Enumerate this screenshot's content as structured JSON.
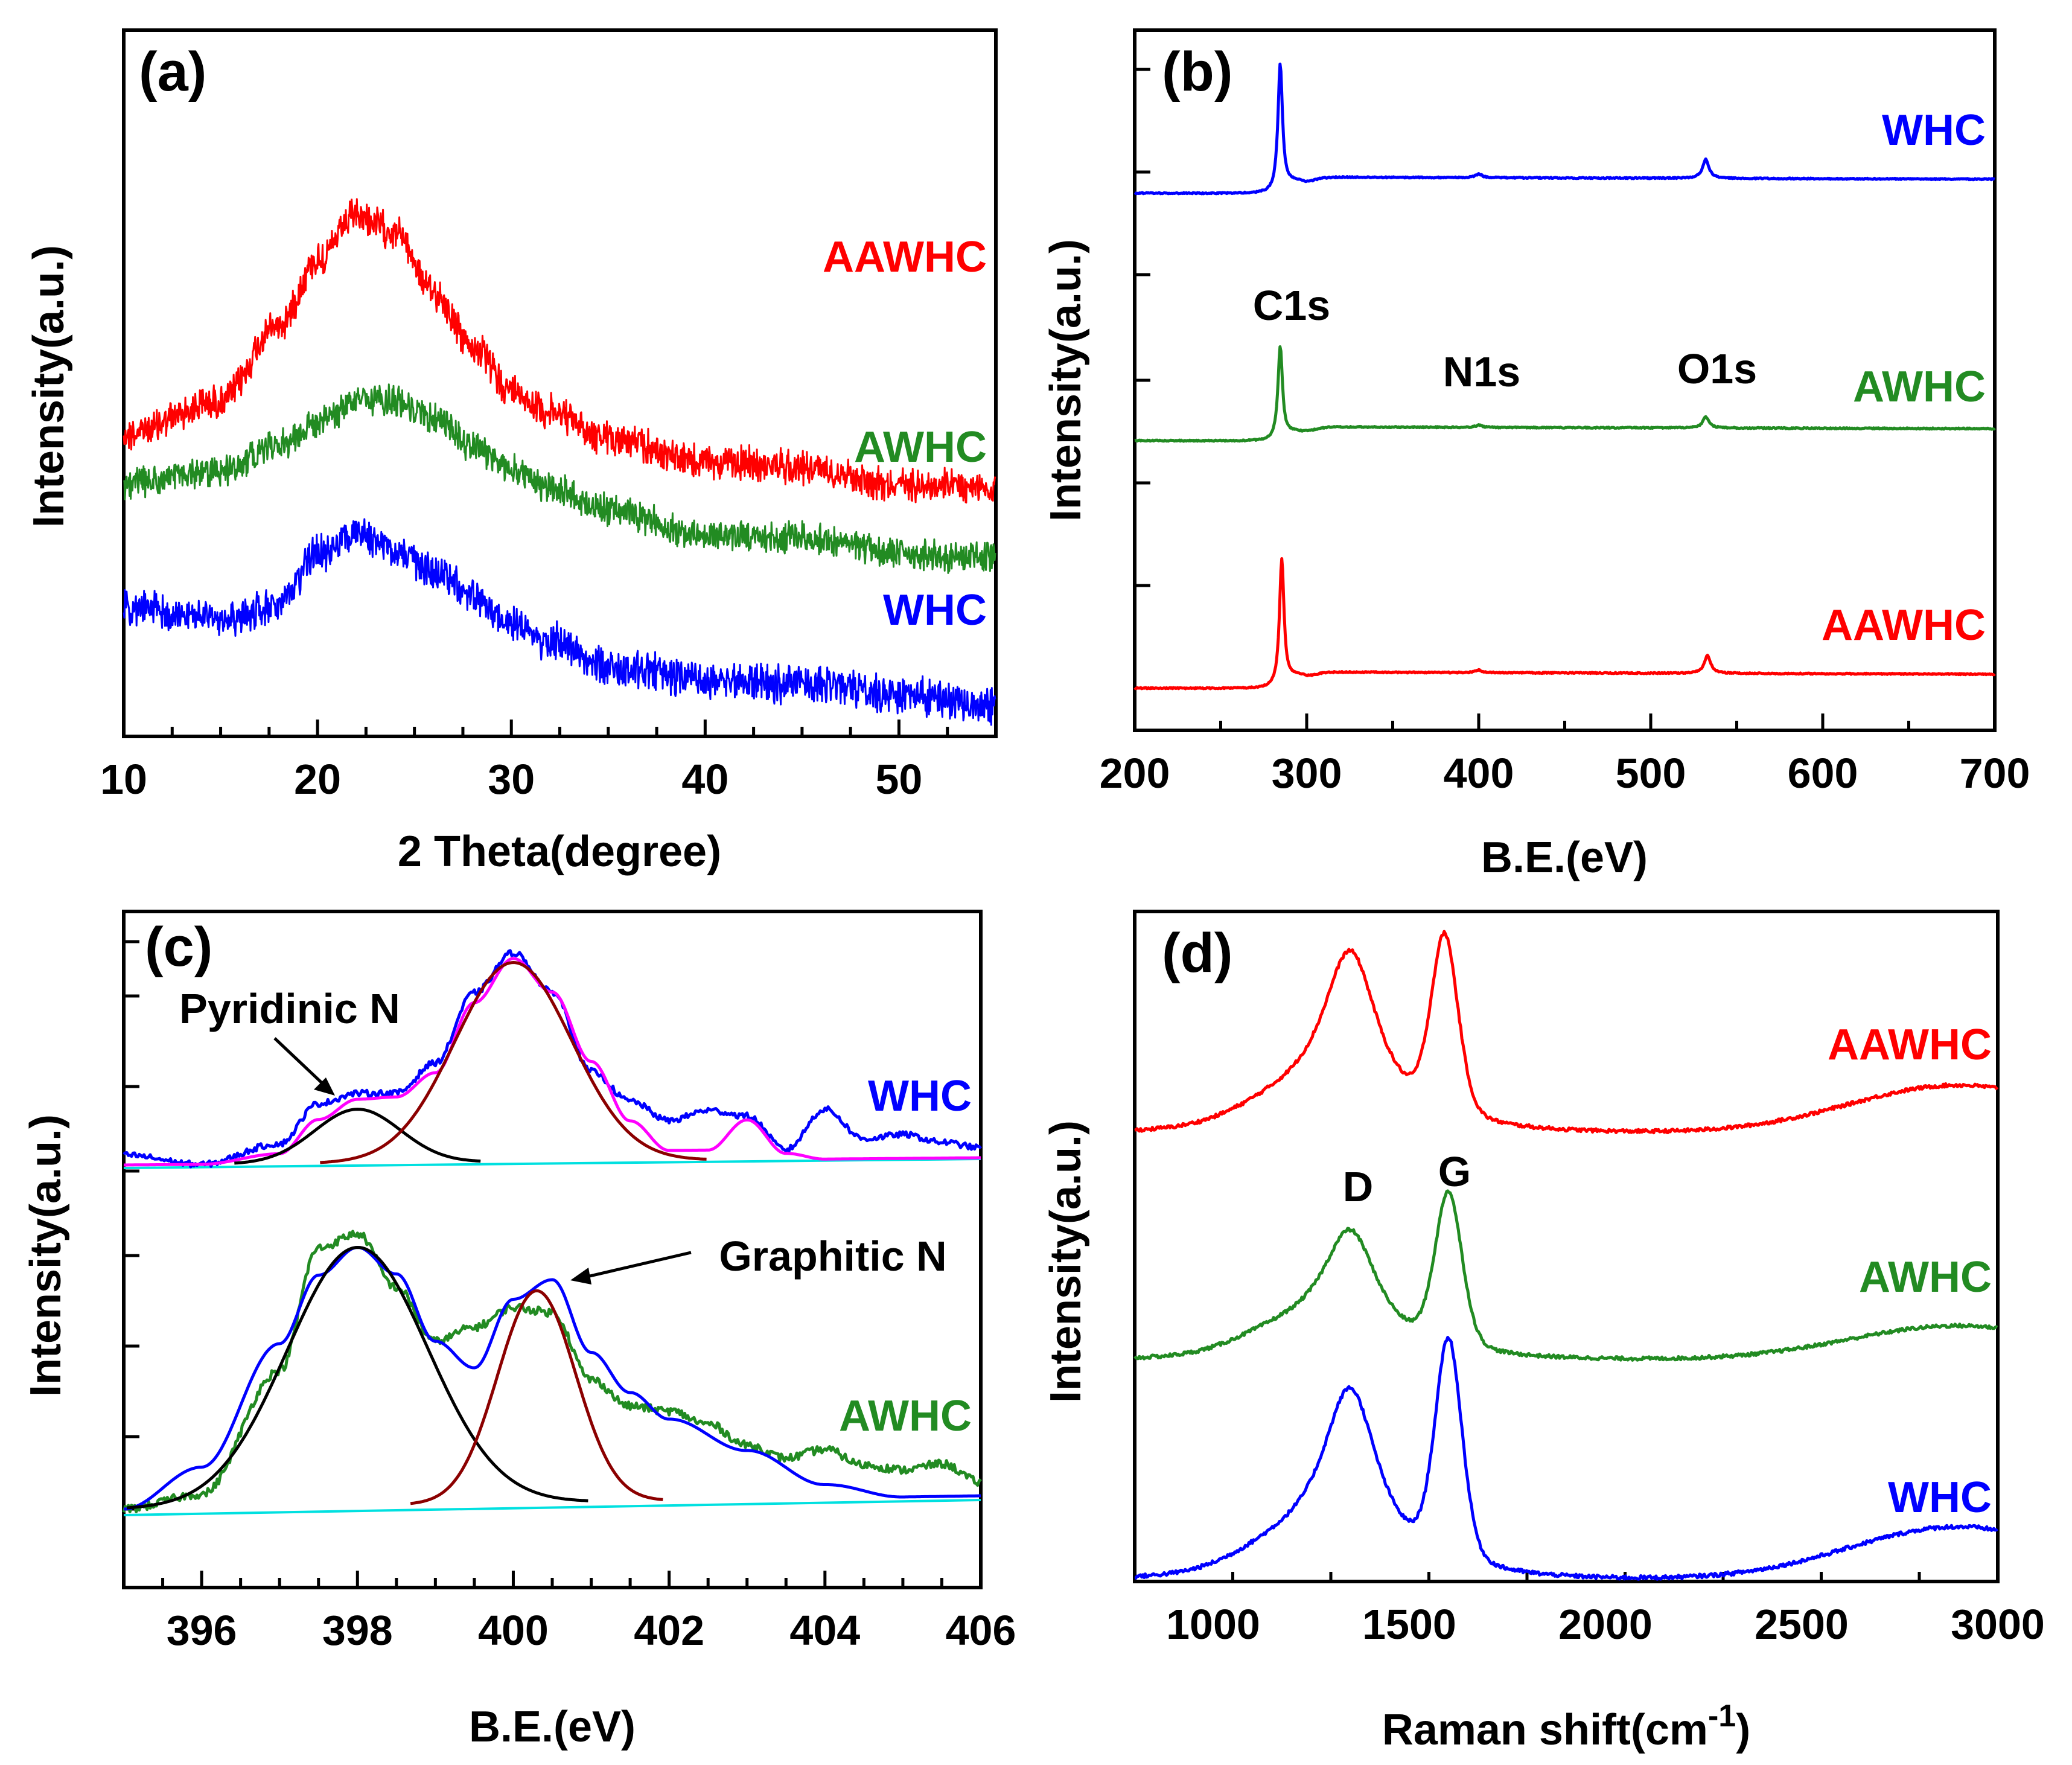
{
  "figure": {
    "panels": [
      {
        "id": "a",
        "panel_label": "(a)",
        "xlabel": "2 Theta(degree)",
        "ylabel": "Intensity(a.u.)",
        "xticks": [
          "10",
          "20",
          "30",
          "40",
          "50"
        ]
      },
      {
        "id": "b",
        "panel_label": "(b)",
        "xlabel": "B.E.(eV)",
        "ylabel": "Intensity(a.u.)",
        "xticks": [
          "200",
          "300",
          "400",
          "500",
          "600",
          "700"
        ],
        "annotations": [
          "C1s",
          "N1s",
          "O1s"
        ]
      },
      {
        "id": "c",
        "panel_label": "(c)",
        "xlabel": "B.E.(eV)",
        "ylabel": "Intensity(a.u.)",
        "xticks": [
          "396",
          "398",
          "400",
          "402",
          "404",
          "406"
        ],
        "annotations": [
          "Pyridinic N",
          "Graphitic N"
        ]
      },
      {
        "id": "d",
        "panel_label": "(d)",
        "xlabel_main": "Raman shift(cm",
        "xlabel_sup": "-1",
        "xlabel_close": ")",
        "ylabel": "Intensity(a.u.)",
        "xticks": [
          "1000",
          "1500",
          "2000",
          "2500",
          "3000"
        ],
        "annotations": [
          "D",
          "G"
        ]
      }
    ]
  },
  "chart_data": [
    {
      "type": "line",
      "panel": "(a)",
      "title": "",
      "xlabel": "2 Theta(degree)",
      "ylabel": "Intensity(a.u.)",
      "xlim": [
        10,
        55
      ],
      "yticks_shown": false,
      "series": [
        {
          "name": "AAWHC",
          "color": "#ff0000",
          "offset": 2.0,
          "x": [
            10,
            15,
            18,
            20,
            22,
            24,
            26,
            28,
            30,
            32,
            35,
            40,
            45,
            50,
            55
          ],
          "y": [
            1.85,
            2.0,
            2.35,
            2.65,
            2.85,
            2.78,
            2.5,
            2.25,
            2.05,
            1.95,
            1.83,
            1.72,
            1.7,
            1.62,
            1.6
          ]
        },
        {
          "name": "AWHC",
          "color": "#228b22",
          "offset": 1.0,
          "x": [
            10,
            15,
            18,
            20,
            22,
            24,
            26,
            28,
            30,
            32,
            35,
            40,
            45,
            50,
            55
          ],
          "y": [
            1.62,
            1.68,
            1.8,
            1.9,
            2.0,
            2.0,
            1.92,
            1.8,
            1.68,
            1.6,
            1.5,
            1.38,
            1.37,
            1.3,
            1.28
          ]
        },
        {
          "name": "WHC",
          "color": "#0000ff",
          "offset": 0.0,
          "x": [
            10,
            15,
            18,
            20,
            22,
            24,
            26,
            28,
            30,
            32,
            35,
            40,
            45,
            50,
            55
          ],
          "y": [
            1.05,
            1.0,
            1.05,
            1.3,
            1.38,
            1.32,
            1.22,
            1.1,
            0.98,
            0.9,
            0.78,
            0.72,
            0.7,
            0.65,
            0.6
          ]
        }
      ]
    },
    {
      "type": "line",
      "panel": "(b)",
      "title": "",
      "xlabel": "B.E.(eV)",
      "ylabel": "Intensity(a.u.)",
      "xlim": [
        200,
        700
      ],
      "yticks_shown": false,
      "series": [
        {
          "name": "WHC",
          "color": "#0000ff",
          "peaks": [
            {
              "x": 284.6,
              "height": 1.0
            },
            {
              "x": 400,
              "height": 0.03
            },
            {
              "x": 532,
              "height": 0.15
            }
          ],
          "baseline_low": 0.0,
          "baseline_high": 0.13
        },
        {
          "name": "AWHC",
          "color": "#228b22",
          "peaks": [
            {
              "x": 284.6,
              "height": 0.85
            },
            {
              "x": 400,
              "height": 0.02
            },
            {
              "x": 532,
              "height": 0.1
            }
          ],
          "baseline_low": 0.0,
          "baseline_high": 0.13
        },
        {
          "name": "AAWHC",
          "color": "#ff0000",
          "peaks": [
            {
              "x": 285.5,
              "height": 1.0
            },
            {
              "x": 400,
              "height": 0.02
            },
            {
              "x": 533,
              "height": 0.14
            }
          ],
          "baseline_low": 0.0,
          "baseline_high": 0.13
        }
      ],
      "annotations": [
        {
          "text": "C1s",
          "x": 285
        },
        {
          "text": "N1s",
          "x": 400
        },
        {
          "text": "O1s",
          "x": 532
        }
      ]
    },
    {
      "type": "line",
      "panel": "(c)",
      "title": "",
      "xlabel": "B.E.(eV)",
      "ylabel": "Intensity(a.u.)",
      "xlim": [
        395,
        406
      ],
      "yticks_shown": false,
      "series": [
        {
          "name": "WHC",
          "color": "#0000ff",
          "role": "raw",
          "x": [
            395,
            396,
            397,
            397.5,
            398,
            398.5,
            399,
            399.5,
            400,
            400.5,
            401,
            401.5,
            402,
            402.5,
            403,
            403.5,
            404,
            404.5,
            405,
            405.5,
            406
          ],
          "y": [
            0.05,
            0.0,
            0.1,
            0.3,
            0.35,
            0.35,
            0.5,
            0.85,
            1.05,
            0.85,
            0.45,
            0.3,
            0.2,
            0.25,
            0.22,
            0.05,
            0.25,
            0.1,
            0.12,
            0.08,
            0.05
          ]
        },
        {
          "name": "WHC envelope",
          "color": "#ff00ff",
          "role": "fit",
          "x": [
            395,
            396,
            397,
            397.5,
            398,
            398.5,
            399,
            399.5,
            400,
            400.5,
            401,
            401.5,
            402,
            402.5,
            403,
            403.5,
            404,
            406
          ],
          "y": [
            0.0,
            0.0,
            0.05,
            0.22,
            0.32,
            0.33,
            0.45,
            0.8,
            1.02,
            0.85,
            0.5,
            0.2,
            0.05,
            0.05,
            0.2,
            0.03,
            0.0,
            0.0
          ]
        },
        {
          "name": "WHC pyridinic N fit",
          "color": "#000000",
          "role": "component",
          "center": 398.0,
          "height": 0.27,
          "width": 0.55
        },
        {
          "name": "WHC graphitic N fit",
          "color": "#8b0000",
          "role": "component",
          "center": 400.0,
          "height": 1.0,
          "width": 0.75
        },
        {
          "name": "AWHC",
          "color": "#228b22",
          "role": "raw",
          "x": [
            395,
            396,
            397,
            397.5,
            398,
            398.5,
            399,
            399.5,
            400,
            400.5,
            401,
            401.5,
            402,
            402.5,
            403,
            403.5,
            404,
            404.5,
            405,
            405.5,
            406
          ],
          "y": [
            0.0,
            0.05,
            0.5,
            0.95,
            1.0,
            0.8,
            0.6,
            0.65,
            0.72,
            0.7,
            0.45,
            0.35,
            0.33,
            0.28,
            0.2,
            0.15,
            0.18,
            0.12,
            0.1,
            0.12,
            0.05
          ]
        },
        {
          "name": "AWHC envelope",
          "color": "#0000ff",
          "role": "fit",
          "x": [
            395,
            396,
            397,
            397.5,
            398,
            398.5,
            399,
            399.5,
            400,
            400.5,
            401,
            401.5,
            402,
            403,
            404,
            405,
            406
          ],
          "y": [
            0.0,
            0.15,
            0.6,
            0.85,
            0.95,
            0.85,
            0.6,
            0.5,
            0.75,
            0.82,
            0.55,
            0.4,
            0.3,
            0.18,
            0.05,
            0.0,
            0.0
          ]
        },
        {
          "name": "AWHC pyridinic N fit",
          "color": "#000000",
          "role": "component",
          "center": 398.0,
          "height": 0.95,
          "width": 0.9
        },
        {
          "name": "AWHC graphitic N fit",
          "color": "#8b0000",
          "role": "component",
          "center": 400.3,
          "height": 0.78,
          "width": 0.5
        }
      ],
      "annotations": [
        {
          "text": "Pyridinic N",
          "x": 398
        },
        {
          "text": "Graphitic N",
          "x": 400.4
        }
      ]
    },
    {
      "type": "line",
      "panel": "(d)",
      "title": "",
      "xlabel": "Raman shift(cm-1)",
      "ylabel": "Intensity(a.u.)",
      "xlim": [
        800,
        3000
      ],
      "yticks_shown": false,
      "series": [
        {
          "name": "AAWHC",
          "color": "#ff0000",
          "D": {
            "x": 1350,
            "height": 1.0
          },
          "G": {
            "x": 1590,
            "height": 0.98
          },
          "hump": {
            "x": 2900,
            "height": 0.28
          }
        },
        {
          "name": "AWHC",
          "color": "#228b22",
          "D": {
            "x": 1350,
            "height": 0.7
          },
          "G": {
            "x": 1600,
            "height": 0.85
          },
          "hump": {
            "x": 2900,
            "height": 0.2
          }
        },
        {
          "name": "WHC",
          "color": "#0000ff",
          "D": {
            "x": 1350,
            "height": 0.95
          },
          "G": {
            "x": 1600,
            "height": 1.1
          },
          "hump": {
            "x": 2900,
            "height": 0.28
          }
        }
      ],
      "annotations": [
        {
          "text": "D",
          "x": 1350
        },
        {
          "text": "G",
          "x": 1600
        }
      ]
    }
  ]
}
